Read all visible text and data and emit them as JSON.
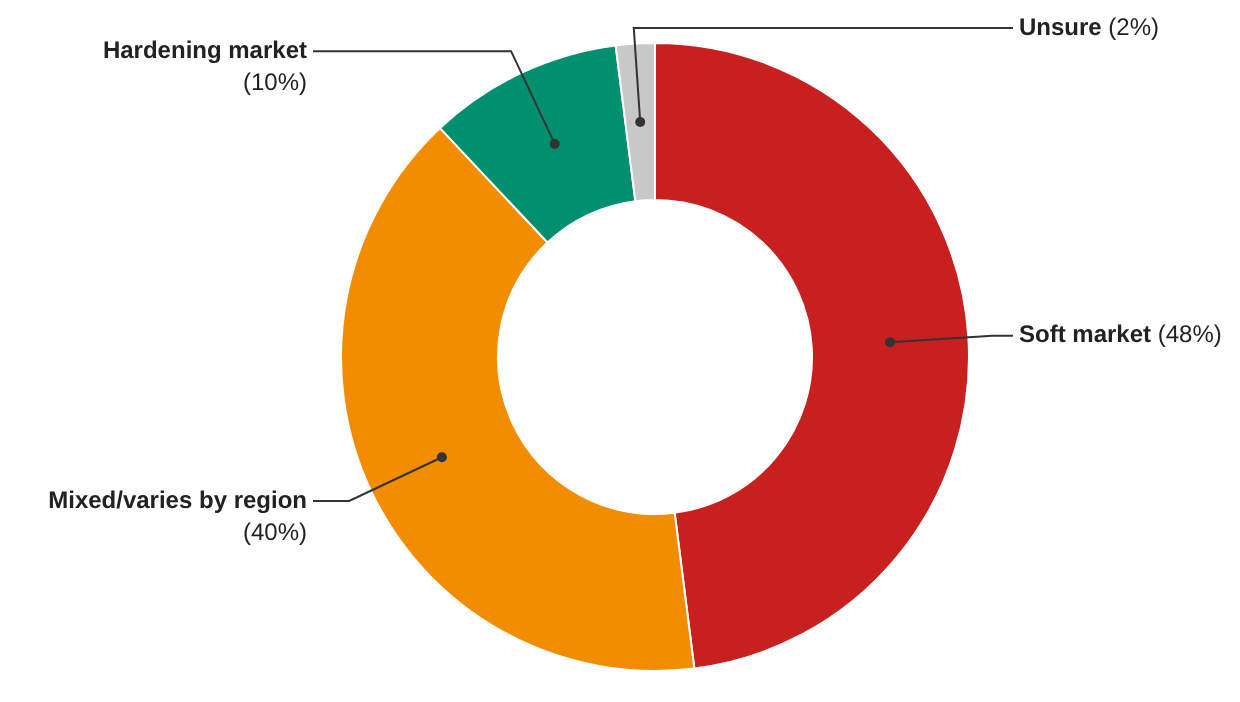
{
  "chart_data": {
    "type": "donut",
    "categories": [
      "Soft market",
      "Mixed/varies by region",
      "Hardening market",
      "Unsure"
    ],
    "values": [
      48,
      40,
      10,
      2
    ],
    "value_labels": [
      "(48%)",
      "(40%)",
      "(10%)",
      "(2%)"
    ],
    "colors": [
      "#c8201f",
      "#f28c00",
      "#008f6f",
      "#c8c8c8"
    ],
    "legend": false
  }
}
